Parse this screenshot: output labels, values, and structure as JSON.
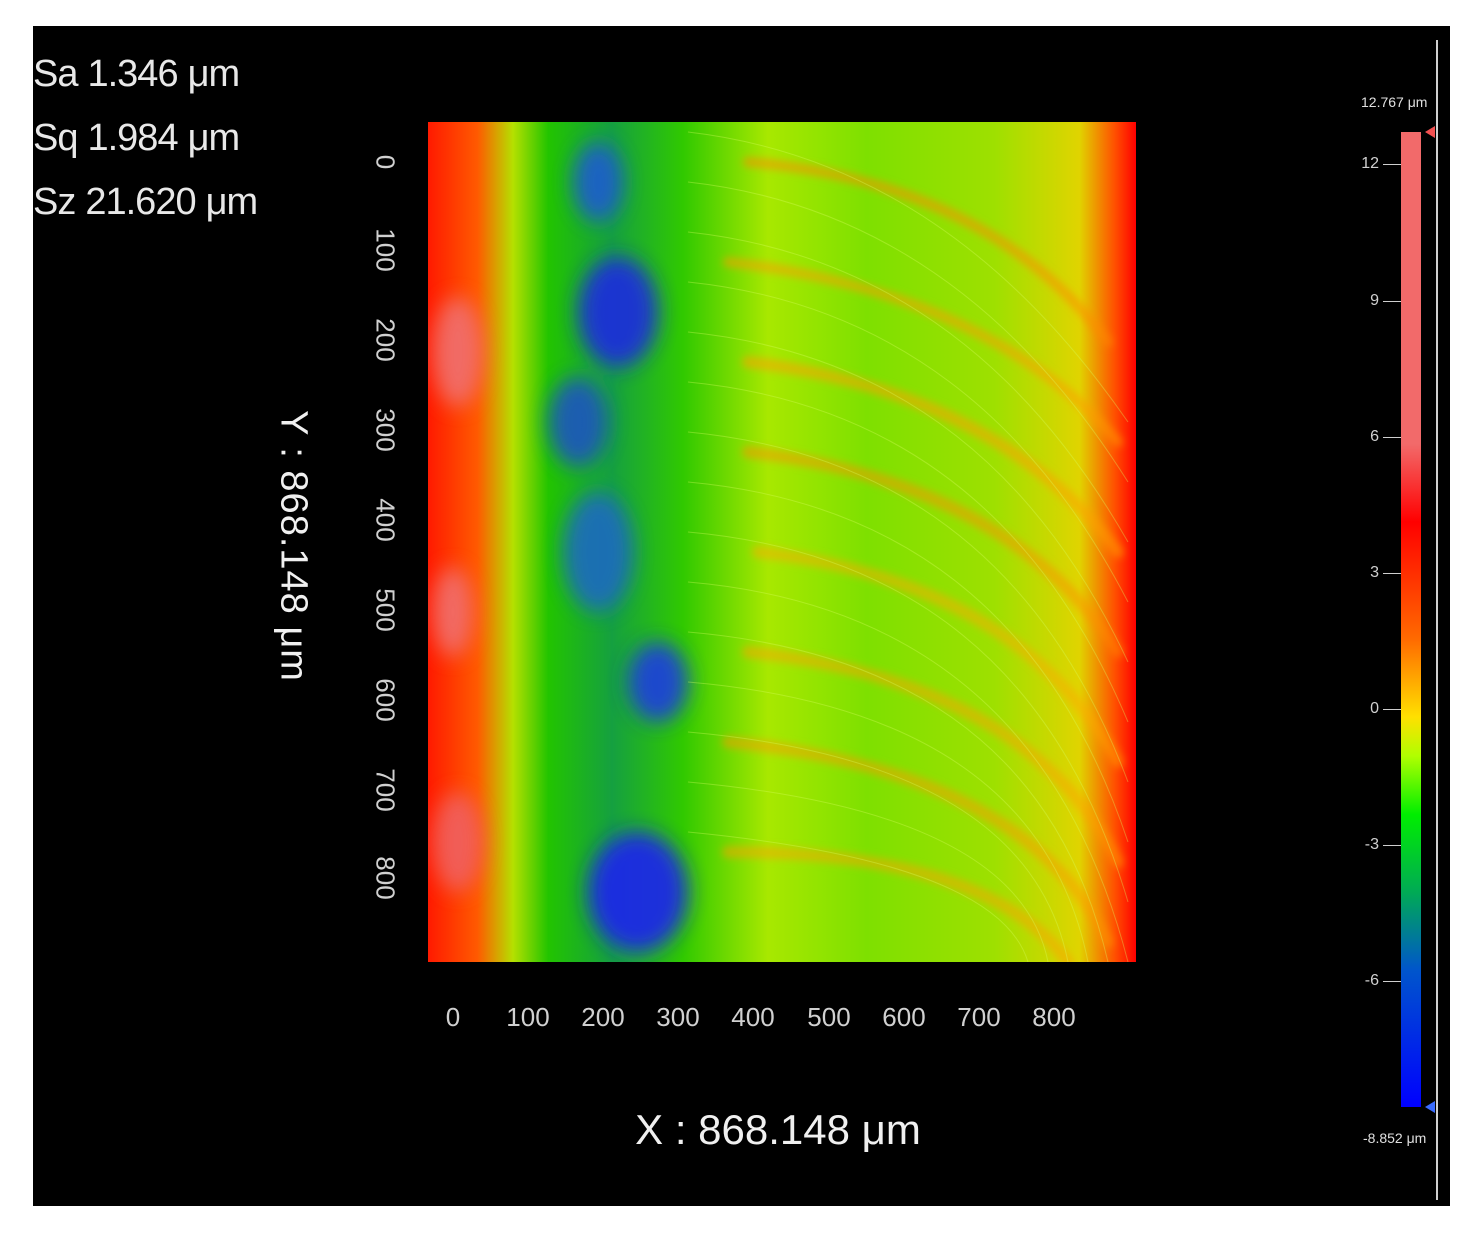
{
  "stats": [
    {
      "name": "Sa",
      "value": "1.346",
      "unit": "μm"
    },
    {
      "name": "Sq",
      "value": "1.984",
      "unit": "μm"
    },
    {
      "name": "Sz",
      "value": "21.620",
      "unit": "μm"
    }
  ],
  "axes": {
    "x_title": "X : 868.148 μm",
    "y_title": "Y : 868.148 μm",
    "x_ticks": [
      "0",
      "100",
      "200",
      "300",
      "400",
      "500",
      "600",
      "700",
      "800"
    ],
    "y_ticks": [
      "0",
      "100",
      "200",
      "300",
      "400",
      "500",
      "600",
      "700",
      "800"
    ]
  },
  "colorbar": {
    "max_label": "12.767 μm",
    "min_label": "-8.852 μm",
    "ticks": [
      "12",
      "9",
      "6",
      "3",
      "0",
      "-3",
      "-6"
    ],
    "colors": {
      "high": "#ff0000",
      "mid_high": "#ffe000",
      "mid": "#00ee00",
      "low": "#0000ff"
    }
  }
}
